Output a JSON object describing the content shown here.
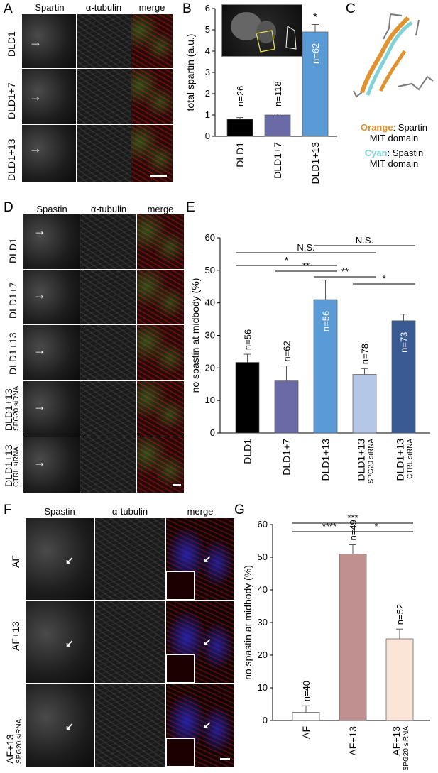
{
  "panelA": {
    "letter": "A",
    "cols": [
      "Spartin",
      "α-tubulin",
      "merge"
    ],
    "rows": [
      "DLD1",
      "DLD1+7",
      "DLD1+13"
    ]
  },
  "panelB": {
    "letter": "B"
  },
  "panelC": {
    "letter": "C",
    "legend1_color": "Orange",
    "legend1_text": ": Spartin",
    "legend1_sub": "MIT domain",
    "legend2_color": "Cyan",
    "legend2_text": ": Spastin",
    "legend2_sub": "MIT domain",
    "orange": "#e0922e",
    "cyan": "#7fd3d6"
  },
  "panelD": {
    "letter": "D",
    "cols": [
      "Spastin",
      "α-tubulin",
      "merge"
    ],
    "rows": [
      {
        "a": "DLD1",
        "b": ""
      },
      {
        "a": "DLD1+7",
        "b": ""
      },
      {
        "a": "DLD1+13",
        "b": ""
      },
      {
        "a": "DLD1+13",
        "b": "SPG20 siRNA"
      },
      {
        "a": "DLD1+13",
        "b": "CTRL siRNA"
      }
    ]
  },
  "panelE": {
    "letter": "E"
  },
  "panelF": {
    "letter": "F",
    "cols": [
      "Spastin",
      "α-tubulin",
      "merge"
    ],
    "rows": [
      {
        "a": "AF",
        "b": ""
      },
      {
        "a": "AF+13",
        "b": ""
      },
      {
        "a": "AF+13",
        "b": "SPG20 siRNA"
      }
    ]
  },
  "panelG": {
    "letter": "G"
  },
  "chart_data": [
    {
      "type": "bar",
      "panel": "B",
      "categories": [
        "DLD1",
        "DLD1+7",
        "DLD1+13"
      ],
      "values": [
        0.8,
        1.0,
        4.9
      ],
      "errors": [
        0.08,
        0.05,
        0.35
      ],
      "n_labels": [
        "n=26",
        "n=118",
        "n=62"
      ],
      "colors": [
        "#000000",
        "#6a6aa6",
        "#5b9bd5"
      ],
      "ylabel": "total spartin (a.u.)",
      "ylim": [
        0,
        6
      ],
      "yticks": [
        0,
        1,
        2,
        3,
        4,
        5,
        6
      ],
      "significance": [
        {
          "bar": 2,
          "label": "*"
        }
      ]
    },
    {
      "type": "bar",
      "panel": "E",
      "categories": [
        "DLD1",
        "DLD1+7",
        "DLD1+13",
        "DLD1+13",
        "DLD1+13"
      ],
      "sub_categories": [
        "",
        "",
        "",
        "SPG20 siRNA",
        "CTRL siRNA"
      ],
      "values": [
        21.7,
        16.0,
        41.0,
        18.0,
        34.5
      ],
      "errors": [
        2.5,
        4.6,
        6.0,
        1.8,
        2.0
      ],
      "n_labels": [
        "n=56",
        "n=62",
        "n=56",
        "n=78",
        "n=73"
      ],
      "colors": [
        "#000000",
        "#6a6aa6",
        "#5b9bd5",
        "#b4c7e7",
        "#3a5a94"
      ],
      "ylabel": "no spastin at midbody (%)",
      "ylim": [
        0,
        60
      ],
      "yticks": [
        0,
        10,
        20,
        30,
        40,
        50,
        60
      ],
      "brackets": [
        {
          "from": 0,
          "to": 3,
          "label": "N.S."
        },
        {
          "from": 2,
          "to": 4,
          "label": "N.S."
        },
        {
          "from": 0,
          "to": 2,
          "label": "*"
        },
        {
          "from": 1,
          "to": 2,
          "label": "**"
        },
        {
          "from": 2,
          "to": 3,
          "label": "**"
        },
        {
          "from": 3,
          "to": 4,
          "label": "*"
        }
      ]
    },
    {
      "type": "bar",
      "panel": "G",
      "categories": [
        "AF",
        "AF+13",
        "AF+13"
      ],
      "sub_categories": [
        "",
        "",
        "SPG20 siRNA"
      ],
      "values": [
        2.5,
        51.0,
        25.0
      ],
      "errors": [
        2.0,
        2.8,
        3.0
      ],
      "n_labels": [
        "n=40",
        "n=49",
        "n=52"
      ],
      "colors": [
        "#ffffff",
        "#c09090",
        "#fbe5d6"
      ],
      "ylabel": "no spastin at midbody (%)",
      "ylim": [
        0,
        60
      ],
      "yticks": [
        0,
        10,
        20,
        30,
        40,
        50,
        60
      ],
      "brackets": [
        {
          "from": 0,
          "to": 1,
          "label": "****"
        },
        {
          "from": 0,
          "to": 2,
          "label": "***"
        },
        {
          "from": 1,
          "to": 2,
          "label": "*"
        }
      ]
    }
  ]
}
